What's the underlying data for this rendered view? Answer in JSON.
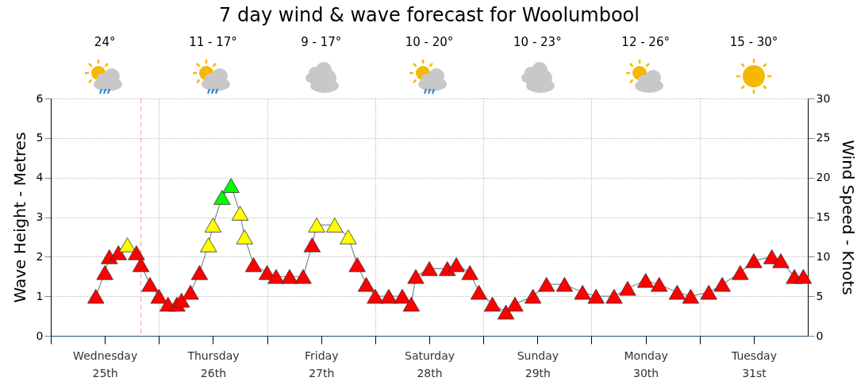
{
  "chart_data": {
    "type": "line",
    "title": "7 day wind & wave forecast for Woolumbool",
    "ylabel": "Wave Height - Metres",
    "y2label": "Wind Speed - Knots",
    "annotations": [
      "24°",
      "11 - 17°",
      "9 - 17°",
      "10 - 20°",
      "10 - 23°",
      "12 - 26°",
      "15 - 30°"
    ],
    "xlim": [
      "--12-25T00:00",
      "--12-31T23:59"
    ],
    "xticks": [
      {
        "value": "--12-25T00:00",
        "label": null
      },
      {
        "value": "--12-25T12:00",
        "label": "Wednesday 25th"
      },
      {
        "value": "--12-26T00:00",
        "label": null
      },
      {
        "value": "--12-26T12:00",
        "label": "Thursday 26th"
      },
      {
        "value": "--12-27T00:00",
        "label": null
      },
      {
        "value": "--12-27T12:00",
        "label": "Friday 27th"
      },
      {
        "value": "--12-28T00:00",
        "label": null
      },
      {
        "value": "--12-28T12:00",
        "label": "Saturday 28th"
      },
      {
        "value": "--12-29T00:00",
        "label": null
      },
      {
        "value": "--12-29T12:00",
        "label": "Sunday 29th"
      },
      {
        "value": "--12-30T00:00",
        "label": null
      },
      {
        "value": "--12-30T12:00",
        "label": "Monday 30th"
      },
      {
        "value": "--12-31T00:00",
        "label": null
      },
      {
        "value": "--12-31T12:00",
        "label": "Tuesday 31st"
      }
    ],
    "ylim": [
      0,
      6
    ],
    "yticks": [
      0,
      1,
      2,
      3,
      4,
      5,
      6
    ],
    "y2lim": [
      0,
      30
    ],
    "y2ticks": [
      0,
      5,
      10,
      15,
      20,
      25,
      30
    ],
    "grid": true,
    "marker": "triangle",
    "ref_lines": [
      {
        "axis": "x",
        "value": "--12-25T20:00",
        "color": "#ff9999",
        "line_style": "dashed"
      }
    ],
    "series": [
      {
        "axis": "y2",
        "color": "#888888",
        "x": [
          "--12-25T10:00",
          "--12-25T12:00",
          "--12-25T13:00",
          "--12-25T15:00",
          "--12-25T17:00",
          "--12-25T19:00",
          "--12-25T20:00",
          "--12-25T22:00",
          "--12-26T00:00",
          "--12-26T02:00",
          "--12-26T04:00",
          "--12-26T05:00",
          "--12-26T07:00",
          "--12-26T09:00",
          "--12-26T11:00",
          "--12-26T12:00",
          "--12-26T14:00",
          "--12-26T16:00",
          "--12-26T18:00",
          "--12-26T19:00",
          "--12-26T21:00",
          "--12-27T00:00",
          "--12-27T02:00",
          "--12-27T05:00",
          "--12-27T08:00",
          "--12-27T10:00",
          "--12-27T11:00",
          "--12-27T15:00",
          "--12-27T18:00",
          "--12-27T20:00",
          "--12-27T22:00",
          "--12-28T00:00",
          "--12-28T03:00",
          "--12-28T06:00",
          "--12-28T08:00",
          "--12-28T09:00",
          "--12-28T12:00",
          "--12-28T16:00",
          "--12-28T18:00",
          "--12-28T21:00",
          "--12-28T23:00",
          "--12-29T02:00",
          "--12-29T05:00",
          "--12-29T07:00",
          "--12-29T11:00",
          "--12-29T14:00",
          "--12-29T18:00",
          "--12-29T22:00",
          "--12-30T01:00",
          "--12-30T05:00",
          "--12-30T08:00",
          "--12-30T12:00",
          "--12-30T15:00",
          "--12-30T19:00",
          "--12-30T22:00",
          "--12-31T02:00",
          "--12-31T05:00",
          "--12-31T09:00",
          "--12-31T12:00",
          "--12-31T16:00",
          "--12-31T18:00",
          "--12-31T21:00",
          "--12-31T23:00"
        ],
        "values": [
          5,
          8,
          10,
          10.5,
          11.5,
          10.5,
          9,
          6.5,
          5,
          4,
          4,
          4.5,
          5.5,
          8,
          11.5,
          14,
          17.5,
          19,
          15.5,
          12.5,
          9,
          8,
          7.5,
          7.5,
          7.5,
          11.5,
          14,
          14,
          12.5,
          9,
          6.5,
          5,
          5,
          5,
          4,
          7.5,
          8.5,
          8.5,
          9,
          8,
          5.5,
          4,
          3,
          4,
          5,
          6.5,
          6.5,
          5.5,
          5,
          5,
          6,
          7,
          6.5,
          5.5,
          5,
          5.5,
          6.5,
          8,
          9.5,
          10,
          9.5,
          7.5,
          7.5
        ],
        "colors": [
          "#ff0000",
          "#ff0000",
          "#ff0000",
          "#ff0000",
          "#ffff00",
          "#ff0000",
          "#ff0000",
          "#ff0000",
          "#ff0000",
          "#ff0000",
          "#ff0000",
          "#ff0000",
          "#ff0000",
          "#ff0000",
          "#ffff00",
          "#ffff00",
          "#00ff00",
          "#00ff00",
          "#ffff00",
          "#ffff00",
          "#ff0000",
          "#ff0000",
          "#ff0000",
          "#ff0000",
          "#ff0000",
          "#ff0000",
          "#ffff00",
          "#ffff00",
          "#ffff00",
          "#ff0000",
          "#ff0000",
          "#ff0000",
          "#ff0000",
          "#ff0000",
          "#ff0000",
          "#ff0000",
          "#ff0000",
          "#ff0000",
          "#ff0000",
          "#ff0000",
          "#ff0000",
          "#ff0000",
          "#ff0000",
          "#ff0000",
          "#ff0000",
          "#ff0000",
          "#ff0000",
          "#ff0000",
          "#ff0000",
          "#ff0000",
          "#ff0000",
          "#ff0000",
          "#ff0000",
          "#ff0000",
          "#ff0000",
          "#ff0000",
          "#ff0000",
          "#ff0000",
          "#ff0000",
          "#ff0000",
          "#ff0000",
          "#ff0000",
          "#ff0000"
        ]
      }
    ]
  }
}
